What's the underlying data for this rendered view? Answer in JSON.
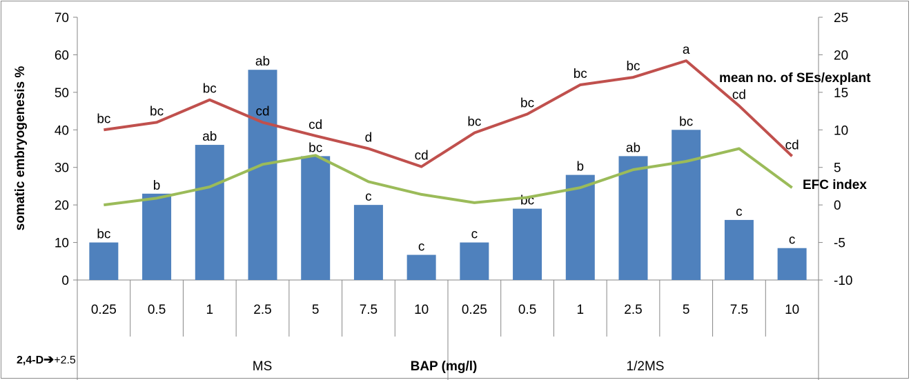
{
  "chart_data": {
    "type": "bar",
    "xlabel": "BAP (mg/l)",
    "ylabel": "somatic embryogenesis %",
    "ylim": [
      0,
      70
    ],
    "y2lim": [
      -10,
      25
    ],
    "yticks": [
      0,
      10,
      20,
      30,
      40,
      50,
      60,
      70
    ],
    "y2ticks": [
      -10,
      -5,
      0,
      5,
      10,
      15,
      20,
      25
    ],
    "grid": false,
    "categories": [
      "0.25",
      "0.5",
      "1",
      "2.5",
      "5",
      "7.5",
      "10",
      "0.25",
      "0.5",
      "1",
      "2.5",
      "5",
      "7.5",
      "10"
    ],
    "groups": [
      "MS",
      "1/2MS"
    ],
    "prefix_label": "2,4-D",
    "prefix_value": "+2.5",
    "series": [
      {
        "type": "bar",
        "axis": "left",
        "color": "#4f81bd",
        "values": [
          10,
          23,
          36,
          56,
          33,
          20,
          6.7,
          10,
          19,
          28,
          33,
          40,
          16,
          8.5
        ],
        "labels": [
          "bc",
          "b",
          "ab",
          "ab",
          "bc",
          "c",
          "c",
          "c",
          "bc",
          "b",
          "ab",
          "bc",
          "c",
          "c"
        ]
      },
      {
        "type": "line",
        "axis": "right",
        "name": "mean no. of SEs/explant",
        "color": "#c0504d",
        "values": [
          10,
          11,
          14,
          11,
          9.2,
          7.5,
          5.1,
          9.6,
          12.1,
          16,
          17,
          19.2,
          13.2,
          6.5
        ],
        "labels": [
          "bc",
          "bc",
          "bc",
          "cd",
          "cd",
          "d",
          "cd",
          "bc",
          "bc",
          "bc",
          "bc",
          "a",
          "cd",
          "cd"
        ]
      },
      {
        "type": "line",
        "axis": "right",
        "name": "EFC index",
        "color": "#9bbb59",
        "values": [
          0,
          0.9,
          2.4,
          5.4,
          6.6,
          3.1,
          1.4,
          0.3,
          1,
          2.3,
          4.7,
          5.8,
          7.5,
          2.3
        ]
      }
    ]
  }
}
